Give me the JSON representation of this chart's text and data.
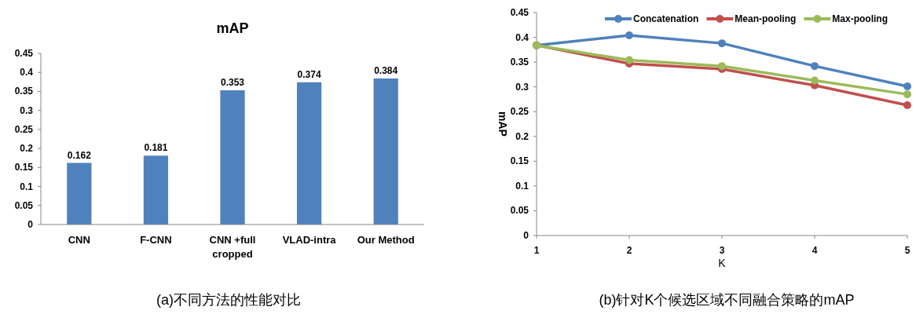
{
  "chart_data": [
    {
      "type": "bar",
      "title": "mAP",
      "categories": [
        "CNN",
        "F-CNN",
        "CNN +full cropped",
        "VLAD-intra",
        "Our Method"
      ],
      "values": [
        0.162,
        0.181,
        0.353,
        0.374,
        0.384
      ],
      "color": "#4f81bd",
      "data_labels": true,
      "ylim": [
        0,
        0.45
      ],
      "yticks": [
        0,
        0.05,
        0.1,
        0.15,
        0.2,
        0.25,
        0.3,
        0.35,
        0.4,
        0.45
      ],
      "grid": false,
      "annotations": [
        "(a)不同方法的性能对比"
      ]
    },
    {
      "type": "line",
      "xlabel": "K",
      "ylabel": "mAP",
      "x": [
        1,
        2,
        3,
        4,
        5
      ],
      "xlim": [
        1,
        5
      ],
      "xticks": [
        1,
        2,
        3,
        4,
        5
      ],
      "ylim": [
        0,
        0.45
      ],
      "yticks": [
        0,
        0.05,
        0.1,
        0.15,
        0.2,
        0.25,
        0.3,
        0.35,
        0.4,
        0.45
      ],
      "grid": false,
      "legend": "top",
      "marker": "circle",
      "line_style": "solid",
      "series": [
        {
          "name": "Concatenation",
          "color": "#4f81bd",
          "values": [
            0.384,
            0.404,
            0.388,
            0.342,
            0.301
          ]
        },
        {
          "name": "Mean-pooling",
          "color": "#c0504d",
          "values": [
            0.384,
            0.347,
            0.336,
            0.303,
            0.263
          ]
        },
        {
          "name": "Max-pooling",
          "color": "#9bbb59",
          "values": [
            0.384,
            0.354,
            0.342,
            0.313,
            0.285
          ]
        }
      ],
      "annotations": [
        "(b)针对K个候选区域不同融合策略的mAP"
      ]
    }
  ]
}
